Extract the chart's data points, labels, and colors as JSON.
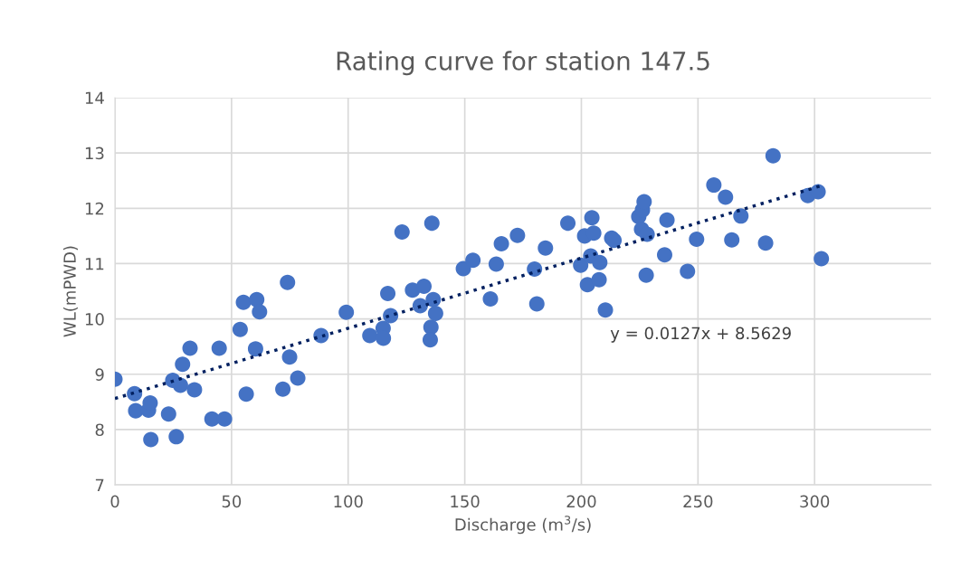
{
  "chart_data": {
    "type": "scatter",
    "title": "Rating curve for station 147.5",
    "xlabel": "Discharge (m$^{3}$/s)",
    "ylabel": "WL(mPWD)",
    "xlim": [
      0,
      350
    ],
    "xticks": [
      0,
      50,
      100,
      150,
      200,
      250,
      300
    ],
    "ylim": [
      7,
      14
    ],
    "yticks": [
      7,
      8,
      9,
      10,
      11,
      12,
      13,
      14
    ],
    "grid": true,
    "legend": false,
    "annotations": [
      "y = 0.0127x + 8.5629"
    ],
    "series": [
      {
        "color": "#4472c4",
        "marker": "circle",
        "x": [
          0,
          8.4,
          8.9,
          14.4,
          15.1,
          15.4,
          23.0,
          24.8,
          26.3,
          28.1,
          29.0,
          32.2,
          34.1,
          41.6,
          44.7,
          47.0,
          53.7,
          55.1,
          56.3,
          60.8,
          62.0,
          60.3,
          72.0,
          74.0,
          74.9,
          78.4,
          88.4,
          99.2,
          109.3,
          115.0,
          115.1,
          117.0,
          118.2,
          123.1,
          127.6,
          132.5,
          130.9,
          136.5,
          137.5,
          135.5,
          135.2,
          135.9,
          149.4,
          153.5,
          161.0,
          163.5,
          165.7,
          172.6,
          179.9,
          180.9,
          184.6,
          194.2,
          204.5,
          201.4,
          205.3,
          213.0,
          214.0,
          199.7,
          204.0,
          207.9,
          202.6,
          207.6,
          210.3,
          224.6,
          226.2,
          226.9,
          225.8,
          228.2,
          227.8,
          236.7,
          235.7,
          245.5,
          249.4,
          256.8,
          261.8,
          268.4,
          264.5,
          279.0,
          282.2,
          297.1,
          301.5,
          302.9
        ],
        "values": [
          8.91,
          8.65,
          8.34,
          8.35,
          8.48,
          7.82,
          8.28,
          8.89,
          7.87,
          8.8,
          9.18,
          9.47,
          8.72,
          8.19,
          9.47,
          8.19,
          9.81,
          10.3,
          8.64,
          10.35,
          10.13,
          9.46,
          8.73,
          10.66,
          9.31,
          8.93,
          9.7,
          10.12,
          9.7,
          9.83,
          9.65,
          10.46,
          10.06,
          11.57,
          10.52,
          10.59,
          10.24,
          10.35,
          10.1,
          9.85,
          9.62,
          11.73,
          10.91,
          11.06,
          10.36,
          10.99,
          11.36,
          11.51,
          10.9,
          10.27,
          11.28,
          11.73,
          11.83,
          11.5,
          11.55,
          11.46,
          11.42,
          10.97,
          11.14,
          11.02,
          10.62,
          10.71,
          10.16,
          11.85,
          11.97,
          12.12,
          11.62,
          11.53,
          10.79,
          11.79,
          11.16,
          10.86,
          11.44,
          12.42,
          12.2,
          11.86,
          11.43,
          11.37,
          12.95,
          12.23,
          12.3,
          11.09
        ]
      },
      {
        "type": "line",
        "color": "#002060",
        "line_style": "dotted",
        "marker": "none",
        "x": [
          0,
          303
        ],
        "values": [
          8.56,
          12.41
        ]
      }
    ]
  }
}
